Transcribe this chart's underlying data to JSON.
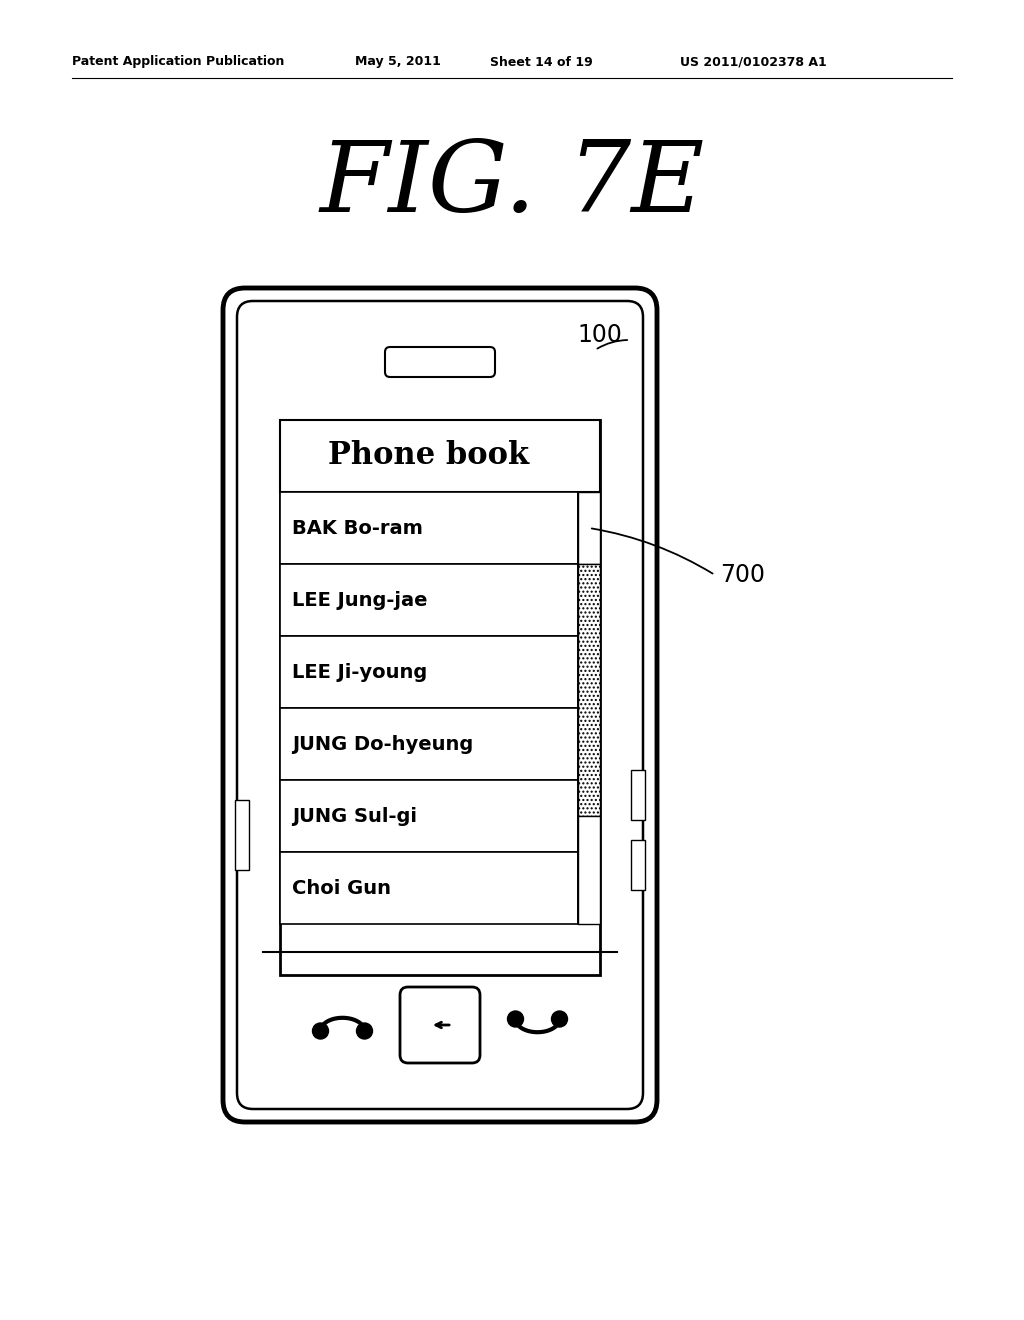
{
  "fig_title": "FIG. 7E",
  "patent_header": "Patent Application Publication",
  "patent_date": "May 5, 2011",
  "patent_sheet": "Sheet 14 of 19",
  "patent_number": "US 2011/0102378 A1",
  "phone_book_title": "Phone book",
  "contacts": [
    "BAK Bo-ram",
    "LEE Jung-jae",
    "LEE Ji-young",
    "JUNG Do-hyeung",
    "JUNG Sul-gi",
    "Choi Gun"
  ],
  "label_100": "100",
  "label_700": "700",
  "bg_color": "#ffffff",
  "line_color": "#000000"
}
